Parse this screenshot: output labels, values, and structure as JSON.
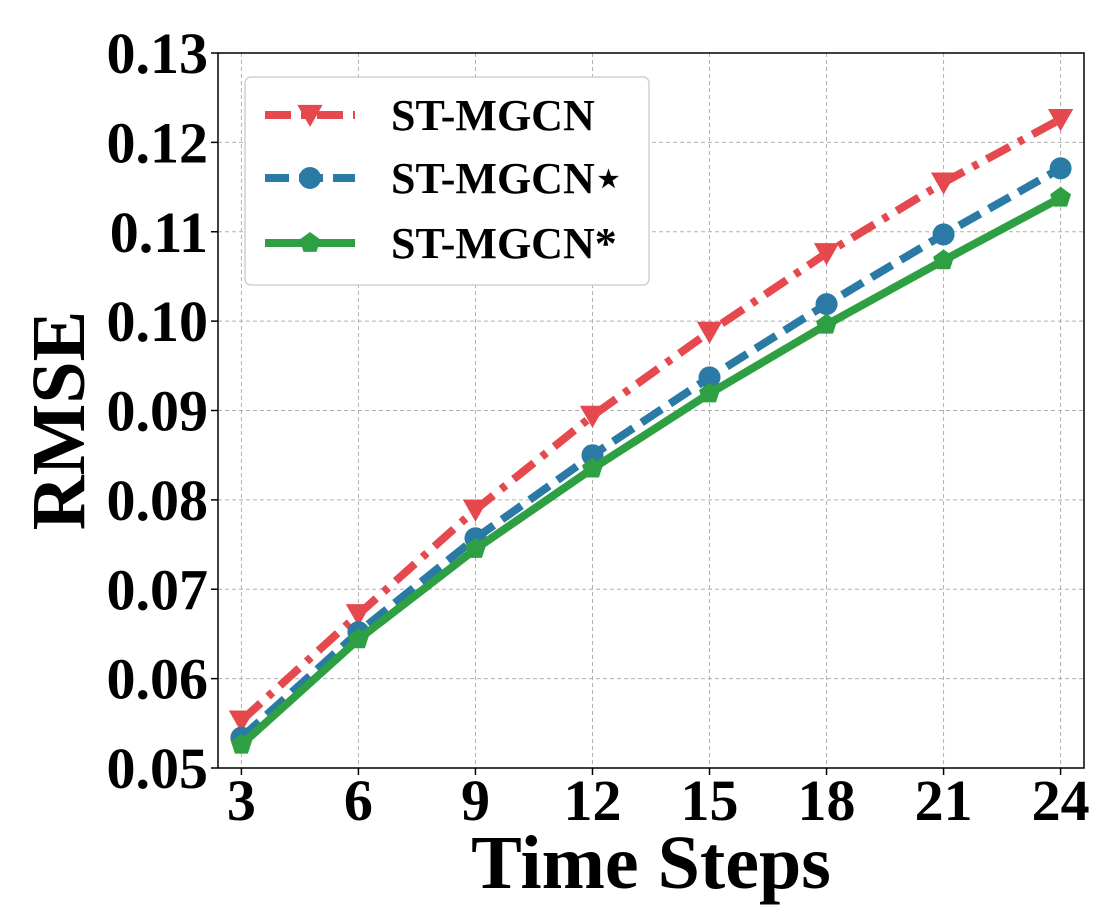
{
  "chart_data": {
    "type": "line",
    "xlabel": "Time Steps",
    "ylabel": "RMSE",
    "x": [
      3,
      6,
      9,
      12,
      15,
      18,
      21,
      24
    ],
    "xticks": [
      "3",
      "6",
      "9",
      "12",
      "15",
      "18",
      "21",
      "24"
    ],
    "ylim": [
      0.05,
      0.13
    ],
    "yticks": [
      "0.05",
      "0.06",
      "0.07",
      "0.08",
      "0.09",
      "0.10",
      "0.11",
      "0.12",
      "0.13"
    ],
    "grid": true,
    "legend_position": "top-left",
    "series": [
      {
        "name": "ST-MGCN",
        "color": "#e5484d",
        "line_style": "dash-dot",
        "marker": "triangle-down",
        "values": [
          0.0553,
          0.0672,
          0.0789,
          0.0894,
          0.0988,
          0.1076,
          0.1155,
          0.1226
        ]
      },
      {
        "name": "ST-MGCN⋆",
        "color": "#2a7aa5",
        "line_style": "dashed",
        "marker": "circle",
        "values": [
          0.0534,
          0.0652,
          0.0757,
          0.085,
          0.0937,
          0.1019,
          0.1097,
          0.1171
        ]
      },
      {
        "name": "ST-MGCN*",
        "color": "#2ea043",
        "line_style": "solid",
        "marker": "pentagon",
        "values": [
          0.0526,
          0.0644,
          0.0745,
          0.0835,
          0.0919,
          0.0996,
          0.1068,
          0.1138
        ]
      }
    ]
  }
}
